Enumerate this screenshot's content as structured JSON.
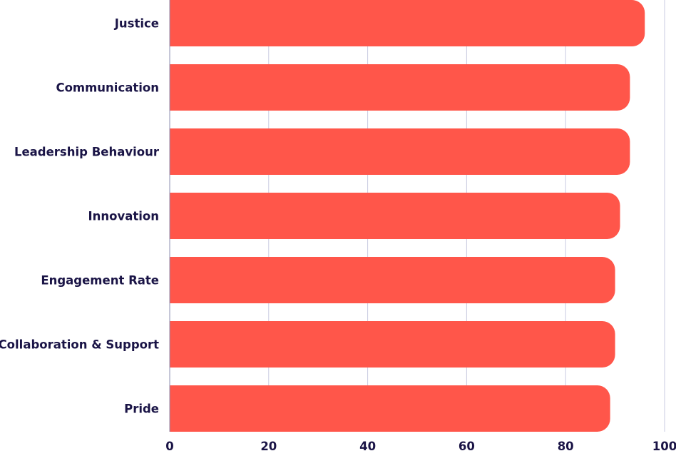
{
  "chart_data": {
    "type": "bar",
    "orientation": "horizontal",
    "categories": [
      "Justice",
      "Communication",
      "Leadership Behaviour",
      "Innovation",
      "Engagement Rate",
      "Collaboration & Support",
      "Pride"
    ],
    "values": [
      96,
      93,
      93,
      91,
      90,
      90,
      89
    ],
    "title": "",
    "xlabel": "",
    "ylabel": "",
    "xlim": [
      0,
      100
    ],
    "xticks": [
      "0",
      "20",
      "40",
      "60",
      "80",
      "100"
    ],
    "grid": true,
    "legend": "none",
    "bar_color": "#ff564a",
    "text_color": "#1a1446"
  }
}
